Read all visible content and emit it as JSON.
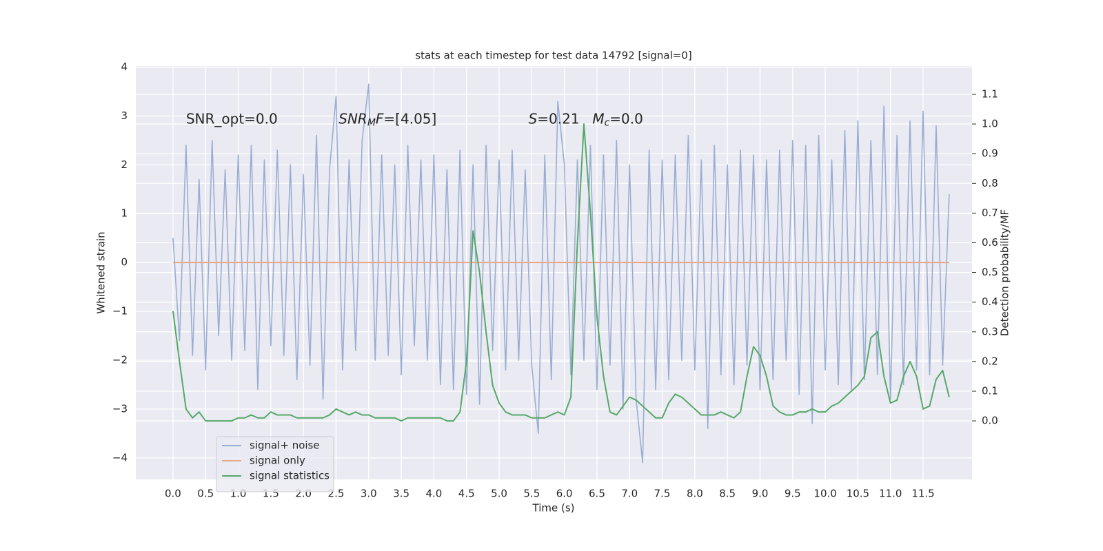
{
  "chart_data": {
    "type": "line",
    "title": "stats at each timestep for test data 14792 [signal=0]",
    "xlabel": "Time (s)",
    "ylabel": "Whitened strain",
    "y2label": "Detection probability/MF",
    "annotations": [
      [
        "SNR_opt=0.0"
      ],
      [
        "SNR",
        "M",
        "F",
        "=[4.05]"
      ],
      [
        "S",
        "=0.21"
      ],
      [
        "M",
        "c",
        "=0.0"
      ]
    ],
    "x": [
      0.0,
      0.1,
      0.2,
      0.3,
      0.4,
      0.5,
      0.6,
      0.7,
      0.8,
      0.9,
      1.0,
      1.1,
      1.2,
      1.3,
      1.4,
      1.5,
      1.6,
      1.7,
      1.8,
      1.9,
      2.0,
      2.1,
      2.2,
      2.3,
      2.4,
      2.5,
      2.6,
      2.7,
      2.8,
      2.9,
      3.0,
      3.1,
      3.2,
      3.3,
      3.4,
      3.5,
      3.6,
      3.7,
      3.8,
      3.9,
      4.0,
      4.1,
      4.2,
      4.3,
      4.4,
      4.5,
      4.6,
      4.7,
      4.8,
      4.9,
      5.0,
      5.1,
      5.2,
      5.3,
      5.4,
      5.5,
      5.6,
      5.7,
      5.8,
      5.9,
      6.0,
      6.1,
      6.2,
      6.3,
      6.4,
      6.5,
      6.6,
      6.7,
      6.8,
      6.9,
      7.0,
      7.1,
      7.2,
      7.3,
      7.4,
      7.5,
      7.6,
      7.7,
      7.8,
      7.9,
      8.0,
      8.1,
      8.2,
      8.3,
      8.4,
      8.5,
      8.6,
      8.7,
      8.8,
      8.9,
      9.0,
      9.1,
      9.2,
      9.3,
      9.4,
      9.5,
      9.6,
      9.7,
      9.8,
      9.9,
      10.0,
      10.1,
      10.2,
      10.3,
      10.4,
      10.5,
      10.6,
      10.7,
      10.8,
      10.9,
      11.0,
      11.1,
      11.2,
      11.3,
      11.4,
      11.5,
      11.6,
      11.7,
      11.8,
      11.9
    ],
    "series": [
      {
        "name": "signal+ noise",
        "color": "#9aaed3",
        "values": [
          0.5,
          -1.6,
          2.4,
          -1.9,
          1.7,
          -2.2,
          2.5,
          -1.5,
          1.9,
          -2.0,
          2.2,
          -1.8,
          2.4,
          -2.6,
          2.1,
          -1.7,
          2.3,
          -1.9,
          2.0,
          -2.4,
          1.8,
          -2.1,
          2.6,
          -2.8,
          1.9,
          3.4,
          -2.2,
          2.1,
          -1.8,
          2.5,
          3.65,
          -2.0,
          2.2,
          -1.9,
          2.0,
          -2.3,
          2.4,
          -1.7,
          2.1,
          -2.0,
          2.2,
          -2.5,
          1.9,
          -2.6,
          2.3,
          -2.7,
          2.0,
          -2.9,
          2.4,
          -1.8,
          2.1,
          -2.2,
          2.3,
          -2.0,
          1.9,
          -2.1,
          -3.5,
          2.2,
          -2.4,
          3.3,
          2.0,
          -2.3,
          2.1,
          -2.0,
          2.4,
          -2.6,
          2.2,
          -2.1,
          2.5,
          -3.0,
          2.0,
          -2.8,
          -4.1,
          2.3,
          -2.6,
          2.1,
          -2.4,
          2.2,
          -2.0,
          2.6,
          -2.2,
          2.1,
          -3.4,
          2.4,
          -2.3,
          2.0,
          -2.5,
          2.3,
          -2.1,
          2.2,
          -2.6,
          2.1,
          -2.4,
          2.3,
          -2.0,
          2.5,
          -2.7,
          2.4,
          -3.3,
          2.6,
          -2.2,
          2.1,
          -2.5,
          2.7,
          -2.6,
          2.9,
          -2.4,
          2.5,
          -2.3,
          3.2,
          -2.8,
          2.6,
          -2.5,
          2.9,
          -2.2,
          3.1,
          -2.3,
          2.8,
          -2.1,
          1.4
        ]
      },
      {
        "name": "signal only",
        "color": "#e6a88a",
        "values": [
          0,
          0,
          0,
          0,
          0,
          0,
          0,
          0,
          0,
          0,
          0,
          0,
          0,
          0,
          0,
          0,
          0,
          0,
          0,
          0,
          0,
          0,
          0,
          0,
          0,
          0,
          0,
          0,
          0,
          0,
          0,
          0,
          0,
          0,
          0,
          0,
          0,
          0,
          0,
          0,
          0,
          0,
          0,
          0,
          0,
          0,
          0,
          0,
          0,
          0,
          0,
          0,
          0,
          0,
          0,
          0,
          0,
          0,
          0,
          0,
          0,
          0,
          0,
          0,
          0,
          0,
          0,
          0,
          0,
          0,
          0,
          0,
          0,
          0,
          0,
          0,
          0,
          0,
          0,
          0,
          0,
          0,
          0,
          0,
          0,
          0,
          0,
          0,
          0,
          0,
          0,
          0,
          0,
          0,
          0,
          0,
          0,
          0,
          0,
          0,
          0,
          0,
          0,
          0,
          0,
          0,
          0,
          0,
          0,
          0,
          0,
          0,
          0,
          0,
          0,
          0,
          0,
          0,
          0,
          0
        ]
      },
      {
        "name": "signal statistics",
        "color": "#55a868",
        "axis": "y2",
        "values": [
          0.37,
          0.2,
          0.04,
          0.01,
          0.03,
          0.0,
          0.0,
          0.0,
          0.0,
          0.0,
          0.01,
          0.01,
          0.02,
          0.01,
          0.01,
          0.03,
          0.02,
          0.02,
          0.02,
          0.01,
          0.01,
          0.01,
          0.01,
          0.01,
          0.02,
          0.04,
          0.03,
          0.02,
          0.03,
          0.02,
          0.02,
          0.01,
          0.01,
          0.01,
          0.01,
          0.0,
          0.01,
          0.01,
          0.01,
          0.01,
          0.01,
          0.01,
          0.0,
          0.0,
          0.03,
          0.2,
          0.64,
          0.5,
          0.3,
          0.12,
          0.06,
          0.03,
          0.02,
          0.02,
          0.02,
          0.01,
          0.01,
          0.01,
          0.02,
          0.03,
          0.02,
          0.08,
          0.6,
          1.0,
          0.7,
          0.35,
          0.15,
          0.03,
          0.02,
          0.05,
          0.08,
          0.07,
          0.05,
          0.03,
          0.01,
          0.01,
          0.06,
          0.09,
          0.08,
          0.06,
          0.04,
          0.02,
          0.02,
          0.02,
          0.03,
          0.02,
          0.01,
          0.03,
          0.15,
          0.25,
          0.22,
          0.15,
          0.05,
          0.03,
          0.02,
          0.02,
          0.03,
          0.03,
          0.04,
          0.03,
          0.03,
          0.05,
          0.06,
          0.08,
          0.1,
          0.12,
          0.15,
          0.28,
          0.3,
          0.15,
          0.06,
          0.07,
          0.15,
          0.2,
          0.15,
          0.04,
          0.05,
          0.14,
          0.17,
          0.08
        ]
      }
    ],
    "xlim": [
      -0.57,
      12.25
    ],
    "xticks": [
      {
        "value": 0,
        "label": "0.0"
      },
      {
        "value": 0.5,
        "label": "0.5"
      },
      {
        "value": 1,
        "label": "1.0"
      },
      {
        "value": 1.5,
        "label": "1.5"
      },
      {
        "value": 2,
        "label": "2.0"
      },
      {
        "value": 2.5,
        "label": "2.5"
      },
      {
        "value": 3,
        "label": "3.0"
      },
      {
        "value": 3.5,
        "label": "3.5"
      },
      {
        "value": 4,
        "label": "4.0"
      },
      {
        "value": 4.5,
        "label": "4.5"
      },
      {
        "value": 5,
        "label": "5.0"
      },
      {
        "value": 5.5,
        "label": "5.5"
      },
      {
        "value": 6,
        "label": "6.0"
      },
      {
        "value": 6.5,
        "label": "6.5"
      },
      {
        "value": 7,
        "label": "7.0"
      },
      {
        "value": 7.5,
        "label": "7.5"
      },
      {
        "value": 8,
        "label": "8.0"
      },
      {
        "value": 8.5,
        "label": "8.5"
      },
      {
        "value": 9,
        "label": "9.0"
      },
      {
        "value": 9.5,
        "label": "9.5"
      },
      {
        "value": 10,
        "label": "10.0"
      },
      {
        "value": 10.5,
        "label": "10.5"
      },
      {
        "value": 11,
        "label": "11.0"
      },
      {
        "value": 11.5,
        "label": "11.5"
      }
    ],
    "ylim": [
      -4.44,
      4.02
    ],
    "yticks": [
      {
        "value": -4,
        "label": "−4"
      },
      {
        "value": -3,
        "label": "−3"
      },
      {
        "value": -2,
        "label": "−2"
      },
      {
        "value": -1,
        "label": "−1"
      },
      0,
      1,
      2,
      3,
      4
    ],
    "y2lim": [
      -0.197,
      1.195
    ],
    "y2ticks": [
      {
        "value": 0,
        "label": "0.0"
      },
      {
        "value": 0.1,
        "label": "0.1"
      },
      {
        "value": 0.2,
        "label": "0.2"
      },
      {
        "value": 0.3,
        "label": "0.3"
      },
      {
        "value": 0.4,
        "label": "0.4"
      },
      {
        "value": 0.5,
        "label": "0.5"
      },
      {
        "value": 0.6,
        "label": "0.6"
      },
      {
        "value": 0.7,
        "label": "0.7"
      },
      {
        "value": 0.8,
        "label": "0.8"
      },
      {
        "value": 0.9,
        "label": "0.9"
      },
      {
        "value": 1,
        "label": "1.0"
      },
      {
        "value": 1.1,
        "label": "1.1"
      }
    ],
    "grid": true,
    "legend": "lower left"
  }
}
